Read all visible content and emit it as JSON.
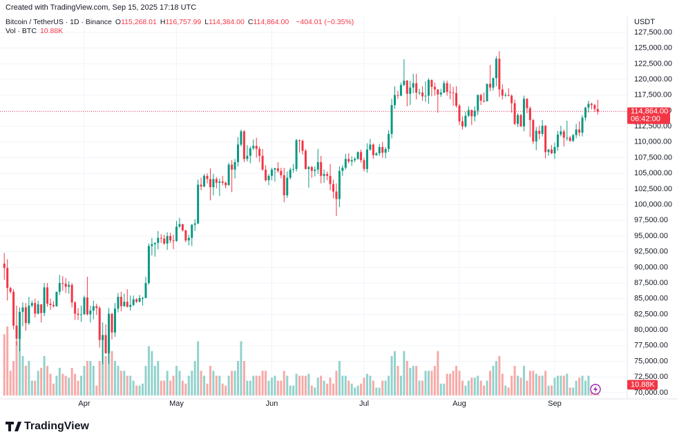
{
  "chart_data": {
    "type": "candlestick",
    "caption": "Created with TradingView.com, Sep 15, 2025 17:18 UTC",
    "symbol": "Bitcoin / TetherUS · 1D · Binance",
    "ohlc_header": [
      {
        "key": "O",
        "label": "115,268.01"
      },
      {
        "key": "H",
        "label": "116,757.99"
      },
      {
        "key": "L",
        "label": "114,384.00"
      },
      {
        "key": "C",
        "label": "114,864.00"
      }
    ],
    "change_label": "−404.01 (−0.35%)",
    "volume_title": "Vol · BTC",
    "volume_last_label": "10.88K",
    "currency": "USDT",
    "close_label": "114,864.00",
    "countdown": "06:42:00",
    "brand": "TradingView",
    "colors": {
      "up": "#089981",
      "down": "#f23645",
      "volume_up": "#92d2cc",
      "volume_down": "#f7a9a7"
    },
    "xlim": [
      -1.4,
      202.6
    ],
    "ylim": [
      69000,
      130250
    ],
    "grid": true,
    "xticks": [
      {
        "value": 26,
        "label": "Apr"
      },
      {
        "value": 56,
        "label": "May"
      },
      {
        "value": 87,
        "label": "Jun"
      },
      {
        "value": 117,
        "label": "Jul"
      },
      {
        "value": 148,
        "label": "Aug"
      },
      {
        "value": 179,
        "label": "Sep"
      }
    ],
    "yticks": [
      {
        "value": 70000,
        "label": "70,000.00"
      },
      {
        "value": 72500,
        "label": "72,500.00"
      },
      {
        "value": 75000,
        "label": "75,000.00"
      },
      {
        "value": 77500,
        "label": "77,500.00"
      },
      {
        "value": 80000,
        "label": "80,000.00"
      },
      {
        "value": 82500,
        "label": "82,500.00"
      },
      {
        "value": 85000,
        "label": "85,000.00"
      },
      {
        "value": 87500,
        "label": "87,500.00"
      },
      {
        "value": 90000,
        "label": "90,000.00"
      },
      {
        "value": 92500,
        "label": "92,500.00"
      },
      {
        "value": 95000,
        "label": "95,000.00"
      },
      {
        "value": 97500,
        "label": "97,500.00"
      },
      {
        "value": 100000,
        "label": "100,000.00"
      },
      {
        "value": 102500,
        "label": "102,500.00"
      },
      {
        "value": 105000,
        "label": "105,000.00"
      },
      {
        "value": 107500,
        "label": "107,500.00"
      },
      {
        "value": 110000,
        "label": "110,000.00"
      },
      {
        "value": 112500,
        "label": "112,500.00"
      },
      {
        "value": 115000,
        "label": "115,000.00"
      },
      {
        "value": 117500,
        "label": "117,500.00"
      },
      {
        "value": 120000,
        "label": "120,000.00"
      },
      {
        "value": 122500,
        "label": "122,500.00"
      },
      {
        "value": 125000,
        "label": "125,000.00"
      },
      {
        "value": 127500,
        "label": "127,500.00"
      }
    ],
    "open": [
      90600,
      89900,
      86700,
      86100,
      80700,
      78600,
      82900,
      83600,
      81100,
      83900,
      84300,
      82600,
      84100,
      82700,
      86800,
      84200,
      84000,
      83800,
      86100,
      87500,
      87400,
      86900,
      87200,
      84400,
      82600,
      82400,
      82500,
      85200,
      82500,
      83100,
      83800,
      83500,
      78400,
      79200,
      76300,
      82600,
      79600,
      83400,
      85300,
      83800,
      84500,
      83700,
      84000,
      84900,
      84500,
      85100,
      85100,
      87500,
      93400,
      93700,
      93900,
      94700,
      94600,
      93800,
      95000,
      94300,
      94200,
      96500,
      96900,
      95900,
      94300,
      94700,
      96800,
      97000,
      103200,
      102900,
      104600,
      104100,
      102800,
      104100,
      103500,
      103700,
      103500,
      103100,
      106400,
      105600,
      106800,
      109600,
      111700,
      107300,
      107800,
      109000,
      109400,
      108900,
      107800,
      105600,
      103900,
      104600,
      105600,
      105800,
      105400,
      104700,
      101500,
      104300,
      105600,
      105700,
      110300,
      110200,
      108600,
      105700,
      106000,
      105400,
      105600,
      106800,
      104600,
      104900,
      104600,
      103300,
      102100,
      100900,
      105400,
      105900,
      107300,
      106900,
      107100,
      107300,
      108400,
      107100,
      105700,
      108800,
      109600,
      107900,
      108200,
      109200,
      108300,
      108900,
      111300,
      115900,
      117500,
      117400,
      119100,
      119800,
      117700,
      118700,
      119400,
      117900,
      117900,
      117300,
      117400,
      119900,
      118800,
      118400,
      117600,
      117900,
      119400,
      118000,
      117900,
      117800,
      115800,
      113300,
      112500,
      114200,
      115100,
      114100,
      115000,
      117500,
      116600,
      116500,
      119300,
      118700,
      120200,
      123300,
      118400,
      117400,
      117500,
      117400,
      116200,
      112900,
      114300,
      112500,
      116900,
      115400,
      113500,
      110100,
      111800,
      111300,
      112600,
      108400,
      108800,
      108200,
      109200,
      111200,
      111700,
      110700,
      110700,
      110200,
      111100,
      112000,
      111500,
      113900,
      115500,
      116100,
      115900,
      115268.01
    ],
    "high": [
      92300,
      91300,
      86900,
      86500,
      83900,
      83600,
      84400,
      84300,
      85300,
      84700,
      85000,
      84700,
      84100,
      87500,
      87500,
      85000,
      84600,
      86100,
      88800,
      88600,
      88300,
      87800,
      87500,
      84600,
      83500,
      83900,
      85500,
      88500,
      83900,
      84700,
      84200,
      83800,
      81200,
      80900,
      83500,
      82700,
      84300,
      85900,
      86100,
      85800,
      86500,
      85500,
      85500,
      85100,
      85600,
      85300,
      88500,
      93800,
      94700,
      94000,
      95800,
      95300,
      95200,
      95600,
      95500,
      95200,
      97400,
      97900,
      96900,
      96000,
      95200,
      96900,
      97700,
      104000,
      104300,
      104900,
      105000,
      105800,
      104900,
      104400,
      104200,
      104600,
      103700,
      106700,
      107100,
      107300,
      110800,
      112000,
      111900,
      109500,
      109300,
      110400,
      110700,
      109300,
      108900,
      106300,
      104900,
      105900,
      105900,
      106800,
      105900,
      105900,
      105300,
      105900,
      106500,
      110500,
      110400,
      110400,
      108900,
      106200,
      106200,
      106100,
      108900,
      107800,
      105600,
      105300,
      106500,
      104000,
      103400,
      106100,
      106300,
      108100,
      108200,
      107700,
      107600,
      108500,
      108800,
      107500,
      109800,
      110500,
      109800,
      108400,
      109700,
      110000,
      109200,
      111900,
      116900,
      118900,
      118200,
      119500,
      123200,
      119900,
      119800,
      120900,
      120900,
      118500,
      118900,
      119700,
      120200,
      120000,
      119500,
      118400,
      118500,
      119800,
      119800,
      119300,
      118800,
      118900,
      116100,
      114100,
      114800,
      115700,
      115200,
      115700,
      117600,
      117700,
      117900,
      119300,
      122300,
      120300,
      123700,
      124500,
      119200,
      117900,
      118600,
      117600,
      116800,
      114600,
      114500,
      117400,
      117000,
      115700,
      113700,
      112400,
      112600,
      113500,
      112700,
      108900,
      109500,
      109900,
      111800,
      112600,
      112000,
      113400,
      111000,
      111300,
      112900,
      113300,
      114300,
      115600,
      116600,
      116300,
      116100,
      116757.99
    ],
    "low": [
      88000,
      84700,
      85800,
      80100,
      77500,
      76600,
      80600,
      79900,
      80800,
      83600,
      82000,
      82500,
      81200,
      82200,
      83700,
      83200,
      83600,
      83700,
      85600,
      86300,
      85900,
      85800,
      83600,
      81600,
      81600,
      81300,
      82400,
      82300,
      81200,
      81700,
      82400,
      77200,
      74500,
      76200,
      74600,
      78500,
      78900,
      82800,
      83000,
      83700,
      83600,
      83100,
      83800,
      84300,
      84400,
      83900,
      85100,
      87200,
      91900,
      91700,
      92900,
      93900,
      93600,
      92800,
      93900,
      92900,
      94100,
      96300,
      95700,
      94000,
      93500,
      93400,
      95800,
      96900,
      102300,
      102800,
      103400,
      100700,
      101500,
      102600,
      101400,
      103100,
      102600,
      103100,
      102000,
      104200,
      106100,
      109300,
      106800,
      106900,
      106600,
      108700,
      107500,
      106800,
      105400,
      103700,
      103100,
      103900,
      103700,
      105100,
      104200,
      100400,
      101100,
      104000,
      105100,
      105300,
      108300,
      108000,
      105600,
      102700,
      104300,
      104500,
      104900,
      103400,
      103500,
      103900,
      102300,
      101000,
      98200,
      99600,
      104600,
      105600,
      106600,
      106200,
      106800,
      107200,
      106700,
      105300,
      105100,
      108600,
      107300,
      107800,
      107800,
      107500,
      107400,
      108400,
      110600,
      115300,
      116900,
      117300,
      118900,
      115700,
      115900,
      117800,
      116800,
      117500,
      116600,
      116400,
      116100,
      117300,
      117400,
      114700,
      117200,
      117800,
      117400,
      116800,
      115800,
      115500,
      112700,
      112000,
      112300,
      114000,
      112700,
      113300,
      114300,
      115900,
      116300,
      116500,
      118100,
      118200,
      118900,
      117200,
      116800,
      117200,
      117300,
      114700,
      112700,
      112400,
      112400,
      111700,
      114600,
      110800,
      109700,
      108700,
      110400,
      110900,
      107400,
      107800,
      108100,
      107300,
      108600,
      110900,
      109300,
      110200,
      110000,
      110000,
      110600,
      110900,
      110900,
      113400,
      114700,
      115200,
      114800,
      114384
    ],
    "close": [
      89900,
      86700,
      86100,
      80700,
      78600,
      82900,
      83600,
      81100,
      83900,
      84300,
      82600,
      84100,
      82700,
      86800,
      84200,
      84000,
      83800,
      86100,
      87500,
      87400,
      86900,
      87200,
      84400,
      82600,
      82400,
      82500,
      85200,
      82500,
      83100,
      83800,
      83500,
      78400,
      79200,
      76300,
      82600,
      79600,
      83400,
      85300,
      83800,
      84500,
      83700,
      84000,
      84900,
      84500,
      85100,
      85100,
      87500,
      93400,
      93700,
      93900,
      94700,
      94600,
      93800,
      95000,
      94300,
      94200,
      96500,
      96900,
      95900,
      94300,
      94700,
      96800,
      97000,
      103200,
      102900,
      104600,
      104100,
      102800,
      104100,
      103500,
      103700,
      103500,
      103100,
      106400,
      105600,
      106800,
      109600,
      111700,
      107300,
      107800,
      109000,
      109400,
      108900,
      107800,
      105600,
      103900,
      104600,
      105600,
      105800,
      105400,
      104700,
      101500,
      104300,
      105600,
      105700,
      110300,
      110200,
      108600,
      105700,
      106000,
      105400,
      105600,
      106800,
      104600,
      104900,
      104600,
      103300,
      102100,
      100900,
      105400,
      105900,
      107300,
      106900,
      107100,
      107300,
      108400,
      107100,
      105700,
      108800,
      109600,
      107900,
      108200,
      109200,
      108300,
      108900,
      111300,
      115900,
      117500,
      117400,
      119100,
      119800,
      117700,
      118700,
      119400,
      117900,
      117900,
      117300,
      117400,
      119900,
      118800,
      118400,
      117600,
      117900,
      119400,
      118000,
      117900,
      117800,
      115800,
      113300,
      112500,
      114200,
      115100,
      114100,
      115000,
      117500,
      116600,
      116500,
      119300,
      118700,
      120200,
      123300,
      118400,
      117400,
      117500,
      117400,
      116200,
      112900,
      114300,
      112500,
      116900,
      115400,
      113500,
      110100,
      111800,
      111300,
      112600,
      108400,
      108800,
      108200,
      109200,
      111200,
      111700,
      110700,
      110700,
      110200,
      111100,
      112000,
      111500,
      113900,
      115500,
      116100,
      115900,
      115300,
      114864
    ],
    "volume": [
      62000,
      70000,
      25000,
      35000,
      55000,
      60000,
      40000,
      30000,
      35000,
      15000,
      15000,
      25000,
      28000,
      40000,
      30000,
      22000,
      12000,
      20000,
      28000,
      22000,
      20000,
      18000,
      28000,
      22000,
      15000,
      20000,
      30000,
      35000,
      35000,
      30000,
      10000,
      35000,
      60000,
      40000,
      70000,
      45000,
      35000,
      30000,
      25000,
      25000,
      20000,
      20000,
      15000,
      10000,
      10000,
      12000,
      30000,
      50000,
      45000,
      30000,
      35000,
      15000,
      15000,
      25000,
      15000,
      20000,
      30000,
      25000,
      15000,
      12000,
      20000,
      25000,
      35000,
      55000,
      25000,
      20000,
      12000,
      30000,
      25000,
      20000,
      20000,
      12000,
      10000,
      20000,
      25000,
      25000,
      35000,
      55000,
      35000,
      15000,
      15000,
      20000,
      20000,
      20000,
      25000,
      25000,
      15000,
      18000,
      20000,
      15000,
      15000,
      25000,
      20000,
      10000,
      10000,
      22000,
      20000,
      20000,
      20000,
      22000,
      10000,
      8000,
      18000,
      20000,
      15000,
      12000,
      18000,
      12000,
      25000,
      35000,
      20000,
      20000,
      15000,
      12000,
      8000,
      10000,
      12000,
      18000,
      22000,
      20000,
      15000,
      8000,
      8000,
      15000,
      15000,
      20000,
      40000,
      45000,
      30000,
      20000,
      45000,
      35000,
      28000,
      30000,
      30000,
      15000,
      15000,
      25000,
      25000,
      25000,
      30000,
      45000,
      12000,
      12000,
      22000,
      22000,
      25000,
      30000,
      25000,
      15000,
      10000,
      15000,
      18000,
      18000,
      20000,
      15000,
      10000,
      15000,
      25000,
      30000,
      35000,
      40000,
      22000,
      10000,
      8000,
      20000,
      30000,
      20000,
      18000,
      30000,
      15000,
      25000,
      25000,
      22000,
      20000,
      20000,
      25000,
      10000,
      10000,
      18000,
      20000,
      20000,
      20000,
      22000,
      8000,
      8000,
      15000,
      18000,
      20000,
      15000,
      20000,
      10000,
      8000,
      10880
    ]
  }
}
